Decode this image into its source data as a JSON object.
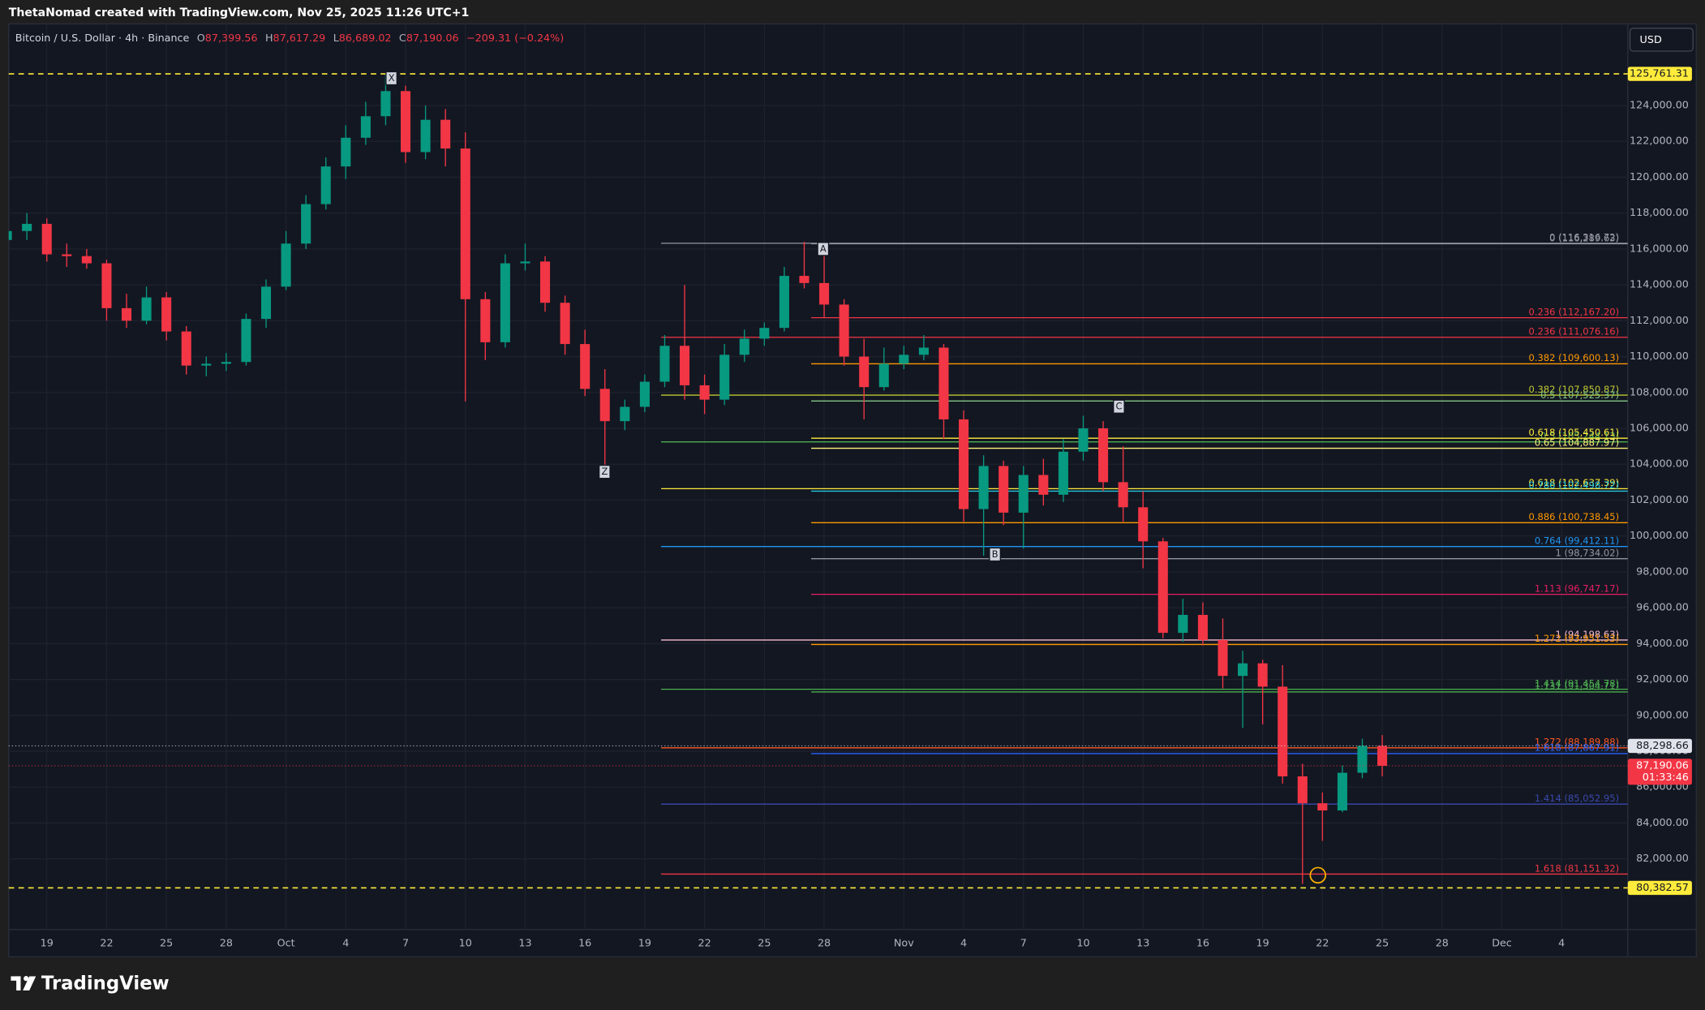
{
  "header": "ThetaNomad created with TradingView.com, Nov 25, 2025 11:26 UTC+1",
  "footer": "TradingView",
  "currency_button": "USD",
  "legend": {
    "symbol": "Bitcoin / U.S. Dollar · 4h · Binance",
    "ohlc": [
      {
        "key": "O",
        "value": "87,399.56"
      },
      {
        "key": "H",
        "value": "87,617.29"
      },
      {
        "key": "L",
        "value": "86,689.02"
      },
      {
        "key": "C",
        "value": "87,190.06"
      }
    ],
    "change": "−209.31 (−0.24%)"
  },
  "annotations": [
    "X",
    "A",
    "C",
    "Z",
    "B"
  ],
  "chart_data": {
    "type": "candlestick",
    "categories": [
      null,
      null,
      "19",
      null,
      null,
      "22",
      null,
      null,
      "25",
      null,
      null,
      "28",
      null,
      null,
      "Oct",
      null,
      null,
      "4",
      null,
      null,
      "7",
      null,
      null,
      "10",
      null,
      null,
      "13",
      null,
      null,
      "16",
      null,
      null,
      "19",
      null,
      null,
      "22",
      null,
      null,
      "25",
      null,
      null,
      "28",
      null,
      null,
      null,
      "Nov",
      null,
      null,
      "4",
      null,
      null,
      "7",
      null,
      null,
      "10",
      null,
      null,
      "13",
      null,
      null,
      "16",
      null,
      null,
      "19",
      null,
      null,
      "22",
      null,
      null,
      "25",
      null,
      null,
      "28",
      null,
      null,
      "Dec",
      null,
      null,
      "4",
      null,
      null
    ],
    "up_color": "#089981",
    "down_color": "#f23645",
    "open": [
      116500,
      117000,
      117400,
      115700,
      115600,
      115200,
      112700,
      112000,
      113300,
      111400,
      109500,
      109600,
      109700,
      112100,
      113900,
      116300,
      118500,
      120600,
      122200,
      123400,
      124800,
      121400,
      123200,
      121600,
      113200,
      110800,
      115200,
      115300,
      113000,
      110700,
      108200,
      106400,
      107200,
      108600,
      110600,
      108400,
      107600,
      110100,
      111000,
      111600,
      114500,
      114100,
      112900,
      110000,
      108300,
      109600,
      110100,
      110500,
      106500,
      101500,
      103900,
      101300,
      103400,
      102300,
      104700,
      106000,
      103000,
      101600,
      99700,
      94600,
      95600,
      94200,
      92200,
      92900,
      91600,
      86600,
      85100,
      84700,
      86800,
      88300,
      null,
      null,
      null,
      null,
      null,
      null,
      null,
      null,
      null,
      null,
      null
    ],
    "high": [
      117800,
      118000,
      117700,
      116300,
      116000,
      115400,
      113500,
      113900,
      113600,
      111700,
      110000,
      110200,
      112400,
      114300,
      117000,
      119000,
      121100,
      122900,
      124200,
      125761.31,
      125100,
      124000,
      123800,
      122500,
      113600,
      115700,
      116300,
      115600,
      113400,
      111500,
      109300,
      107600,
      109000,
      111200,
      114000,
      109000,
      110700,
      111500,
      111900,
      115000,
      116400,
      116000,
      113200,
      111000,
      110500,
      110600,
      111200,
      110700,
      107000,
      104500,
      104200,
      103900,
      104300,
      105400,
      106700,
      106400,
      105000,
      102500,
      99900,
      96500,
      96300,
      95400,
      93600,
      93100,
      92800,
      87300,
      85700,
      87200,
      88700,
      88900,
      null,
      null,
      null,
      null,
      null,
      null,
      null,
      null,
      null,
      null,
      null
    ],
    "low": [
      115900,
      116500,
      115300,
      115000,
      114900,
      112000,
      111600,
      111800,
      110900,
      109000,
      108900,
      109200,
      109500,
      111600,
      113700,
      116000,
      118200,
      119900,
      121800,
      122900,
      120800,
      121000,
      120600,
      107500,
      109800,
      110500,
      114800,
      112500,
      110100,
      107800,
      103600,
      105900,
      106900,
      108300,
      107600,
      106800,
      107300,
      109700,
      110600,
      111400,
      113800,
      112200,
      109500,
      106500,
      108100,
      109300,
      109800,
      105400,
      100800,
      98900,
      100600,
      99300,
      101700,
      101900,
      104200,
      102500,
      100800,
      98200,
      94300,
      94100,
      93900,
      91500,
      89300,
      89500,
      86200,
      80600,
      83000,
      84600,
      86500,
      86600,
      null,
      null,
      null,
      null,
      null,
      null,
      null,
      null,
      null,
      null,
      null
    ],
    "close": [
      117000,
      117400,
      115700,
      115600,
      115200,
      112700,
      112000,
      113300,
      111400,
      109500,
      109600,
      109700,
      112100,
      113900,
      116300,
      118500,
      120600,
      122200,
      123400,
      124800,
      121400,
      123200,
      121600,
      113200,
      110800,
      115200,
      115300,
      113000,
      110700,
      108200,
      106400,
      107200,
      108600,
      110600,
      108400,
      107600,
      110100,
      111000,
      111600,
      114500,
      114100,
      112900,
      110000,
      108300,
      109600,
      110100,
      110500,
      106500,
      101500,
      103900,
      101300,
      103400,
      102300,
      104700,
      106000,
      103000,
      101600,
      99700,
      94600,
      95600,
      94200,
      92200,
      92900,
      91600,
      86600,
      85100,
      84700,
      86800,
      88300,
      87190.06,
      null,
      null,
      null,
      null,
      null,
      null,
      null,
      null,
      null,
      null,
      null
    ],
    "ylim": [
      78060,
      128545
    ],
    "yticks": [
      {
        "value": 82000,
        "label": "82,000.00"
      },
      {
        "value": 84000,
        "label": "84,000.00"
      },
      {
        "value": 86000,
        "label": "86,000.00"
      },
      {
        "value": 88000,
        "label": "88,000.00"
      },
      {
        "value": 90000,
        "label": "90,000.00"
      },
      {
        "value": 92000,
        "label": "92,000.00"
      },
      {
        "value": 94000,
        "label": "94,000.00"
      },
      {
        "value": 96000,
        "label": "96,000.00"
      },
      {
        "value": 98000,
        "label": "98,000.00"
      },
      {
        "value": 100000,
        "label": "100,000.00"
      },
      {
        "value": 102000,
        "label": "102,000.00"
      },
      {
        "value": 104000,
        "label": "104,000.00"
      },
      {
        "value": 106000,
        "label": "106,000.00"
      },
      {
        "value": 108000,
        "label": "108,000.00"
      },
      {
        "value": 110000,
        "label": "110,000.00"
      },
      {
        "value": 112000,
        "label": "112,000.00"
      },
      {
        "value": 114000,
        "label": "114,000.00"
      },
      {
        "value": 116000,
        "label": "116,000.00"
      },
      {
        "value": 118000,
        "label": "118,000.00"
      },
      {
        "value": 120000,
        "label": "120,000.00"
      },
      {
        "value": 122000,
        "label": "122,000.00"
      },
      {
        "value": 124000,
        "label": "124,000.00"
      }
    ],
    "grid": true,
    "fib_groups": [
      {
        "levels": [
          {
            "value": 116316.72,
            "label": "0 (116,316.72)",
            "color": "#9598a1"
          },
          {
            "value": 111076.16,
            "label": "0.236 (111,076.16)",
            "color": "#f23645"
          },
          {
            "value": 107850.87,
            "label": "0.382 (107,850.87)",
            "color": "#c0ca33"
          },
          {
            "value": 105244.13,
            "label": "0.5 (105,244.13)",
            "color": "#4caf50"
          },
          {
            "value": 102637.39,
            "label": "0.618 (102,637.39)",
            "color": "#ffeb3b"
          },
          {
            "value": 99412.11,
            "label": "0.764 (99,412.11)",
            "color": "#2196f3"
          },
          {
            "value": 94198.63,
            "label": "1 (94,198.63)",
            "color": "#f8bbd0"
          },
          {
            "value": 91454.78,
            "label": "1.414 (91,454.78)",
            "color": "#4caf50"
          },
          {
            "value": 88189.88,
            "label": "1.272 (88,189.88)",
            "color": "#ff5722"
          },
          {
            "value": 85052.95,
            "label": "1.414 (85,052.95)",
            "color": "#3949ab"
          },
          {
            "value": 81151.32,
            "label": "1.618 (81,151.32)",
            "color": "#f23645"
          }
        ]
      },
      {
        "levels": [
          {
            "value": 116289.63,
            "label": "0 (116,289.63)",
            "color": "#9598a1"
          },
          {
            "value": 112167.2,
            "label": "0.236 (112,167.20)",
            "color": "#f23645"
          },
          {
            "value": 109600.13,
            "label": "0.382 (109,600.13)",
            "color": "#ff9800"
          },
          {
            "value": 107525.37,
            "label": "0.5 (107,525.37)",
            "color": "#81c784"
          },
          {
            "value": 105450.61,
            "label": "0.618 (105,450.61)",
            "color": "#ffeb3b"
          },
          {
            "value": 104887.97,
            "label": "0.65 (104,887.97)",
            "color": "#fff176"
          },
          {
            "value": 102498.72,
            "label": "0.786 (102,498.72)",
            "color": "#26c6da"
          },
          {
            "value": 100738.45,
            "label": "0.886 (100,738.45)",
            "color": "#ff9800"
          },
          {
            "value": 98734.02,
            "label": "1 (98,734.02)",
            "color": "#9598a1"
          },
          {
            "value": 96747.17,
            "label": "1.113 (96,747.17)",
            "color": "#e91e63"
          },
          {
            "value": 93951.53,
            "label": "1.272 (93,951.53)",
            "color": "#ff9800"
          },
          {
            "value": 91304.71,
            "label": "1.131 (91,304.71)",
            "color": "#4caf50"
          },
          {
            "value": 87867.91,
            "label": "1.618 (87,867.91)",
            "color": "#2962ff"
          }
        ]
      }
    ],
    "price_lines": [
      {
        "value": 125761.31,
        "label": "125,761.31",
        "color": "#ffeb3b",
        "text_color": "#131722",
        "style": "dashed"
      },
      {
        "value": 88298.66,
        "label": "88,298.66",
        "color": "#e0e3eb",
        "text_color": "#131722",
        "style": "dotted"
      },
      {
        "value": 87190.06,
        "label": "87,190.06",
        "color": "#f23645",
        "text_color": "#ffffff",
        "style": "dotted",
        "countdown": "01:33:46"
      },
      {
        "value": 80382.57,
        "label": "80,382.57",
        "color": "#ffeb3b",
        "text_color": "#131722",
        "style": "dashed"
      }
    ]
  }
}
